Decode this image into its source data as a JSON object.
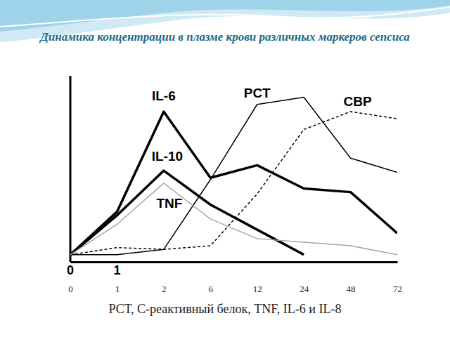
{
  "chart_data": {
    "type": "line",
    "title": "Динамика концентрации в плазме крови различных маркеров сепсиса",
    "subtitle": "РСТ, С-реактивный белок, TNF, IL-6 и IL-8",
    "annotations": [
      {
        "text": "0"
      },
      {
        "text": "1"
      }
    ],
    "categories": [
      "0",
      "1",
      "2",
      "6",
      "12",
      "24",
      "48",
      "72"
    ],
    "ylim": [
      -4,
      100
    ],
    "tick_labels": "x",
    "grid": false,
    "series": [
      {
        "name": "IL-6",
        "color": "#000000",
        "line_style": "solid",
        "values": [
          0,
          24,
          80,
          43,
          50,
          37,
          35,
          12
        ]
      },
      {
        "name": "PCT",
        "color": "#000000",
        "line_style": "solid",
        "values": [
          0,
          0,
          3,
          42,
          84,
          88,
          54,
          46
        ]
      },
      {
        "name": "CBP",
        "color": "#000000",
        "line_style": "dashed",
        "values": [
          0,
          4,
          3,
          5,
          34,
          70,
          80,
          76
        ]
      },
      {
        "name": "IL-10",
        "color": "#000000",
        "line_style": "solid",
        "values": [
          0,
          22,
          47,
          28,
          14,
          0,
          null,
          null
        ]
      },
      {
        "name": "TNF",
        "color": "#a6a6a6",
        "line_style": "solid",
        "values": [
          0,
          17,
          40,
          20,
          9,
          7,
          5,
          0
        ]
      }
    ]
  }
}
